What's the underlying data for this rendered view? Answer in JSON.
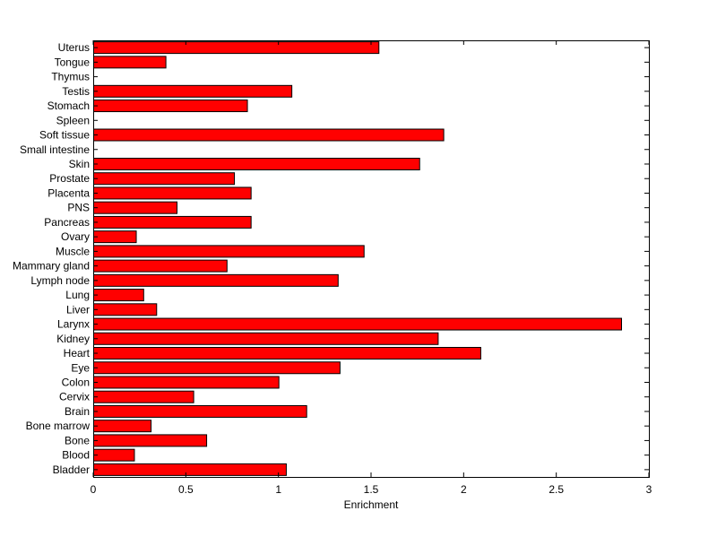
{
  "chart_data": {
    "type": "bar",
    "orientation": "horizontal",
    "title": "",
    "xlabel": "Enrichment",
    "ylabel": "",
    "xlim": [
      0,
      3
    ],
    "xticks": [
      "0",
      "0.5",
      "1",
      "1.5",
      "2",
      "2.5",
      "3"
    ],
    "grid": false,
    "bar_color": "#ff0000",
    "edge_color": "#000000",
    "categories": [
      "Uterus",
      "Tongue",
      "Thymus",
      "Testis",
      "Stomach",
      "Spleen",
      "Soft tissue",
      "Small intestine",
      "Skin",
      "Prostate",
      "Placenta",
      "PNS",
      "Pancreas",
      "Ovary",
      "Muscle",
      "Mammary gland",
      "Lymph node",
      "Lung",
      "Liver",
      "Larynx",
      "Kidney",
      "Heart",
      "Eye",
      "Colon",
      "Cervix",
      "Brain",
      "Bone marrow",
      "Bone",
      "Blood",
      "Bladder"
    ],
    "values": [
      1.54,
      0.39,
      0,
      1.07,
      0.83,
      0,
      1.89,
      0,
      1.76,
      0.76,
      0.85,
      0.45,
      0.85,
      0.23,
      1.46,
      0.72,
      1.32,
      0.27,
      0.34,
      2.85,
      1.86,
      2.09,
      1.33,
      1.0,
      0.54,
      1.15,
      0.31,
      0.61,
      0.22,
      1.04
    ]
  }
}
